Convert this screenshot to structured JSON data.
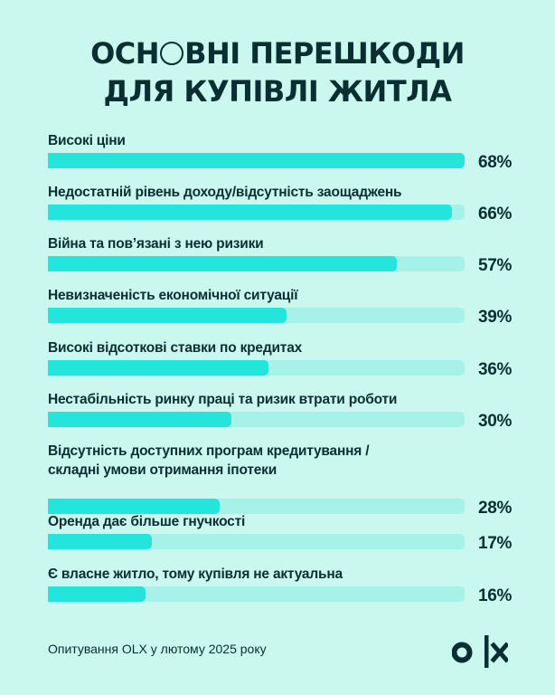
{
  "title": {
    "line1_prefix": "ОСН",
    "line1_suffix": "ВНІ ПЕРЕШКОДИ",
    "line2": "ДЛЯ КУПІВЛІ ЖИТЛА"
  },
  "colors": {
    "background": "#caf7ee",
    "bar_fill": "#23e5db",
    "bar_track": "#a6f2e8",
    "text": "#0a2e32"
  },
  "rows": [
    {
      "label": "Високі ціни",
      "value": "68%"
    },
    {
      "label": "Недостатній рівень доходу/відсутність заощаджень",
      "value": "66%"
    },
    {
      "label": "Війна та пов’язані з нею ризики",
      "value": "57%"
    },
    {
      "label": "Невизначеність економічної ситуації",
      "value": "39%"
    },
    {
      "label": "Високі відсоткові ставки по кредитах",
      "value": "36%"
    },
    {
      "label": "Нестабільність ринку праці та ризик втрати роботи",
      "value": "30%"
    },
    {
      "label": "Відсутність доступних програм кредитування /",
      "label2": "складні умови отримання іпотеки",
      "value": "28%"
    },
    {
      "label": "Оренда дає більше гнучкості",
      "value": "17%"
    },
    {
      "label": "Є власне житло, тому купівля не актуальна",
      "value": "16%"
    }
  ],
  "footer": {
    "source": "Опитування OLX у лютому 2025 року",
    "logo": "olx-logo"
  },
  "chart_data": {
    "type": "bar",
    "orientation": "horizontal",
    "title": "Основні перешкоди для купівлі житла",
    "categories": [
      "Високі ціни",
      "Недостатній рівень доходу/відсутність заощаджень",
      "Війна та пов’язані з нею ризики",
      "Невизначеність економічної ситуації",
      "Високі відсоткові ставки по кредитах",
      "Нестабільність ринку праці та ризик втрати роботи",
      "Відсутність доступних програм кредитування / складні умови отримання іпотеки",
      "Оренда дає більше гнучкості",
      "Є власне житло, тому купівля не актуальна"
    ],
    "values": [
      68,
      66,
      57,
      39,
      36,
      30,
      28,
      17,
      16
    ],
    "unit": "%",
    "xlim": [
      0,
      68
    ],
    "grid": false,
    "legend": "none",
    "source": "Опитування OLX у лютому 2025 року"
  }
}
